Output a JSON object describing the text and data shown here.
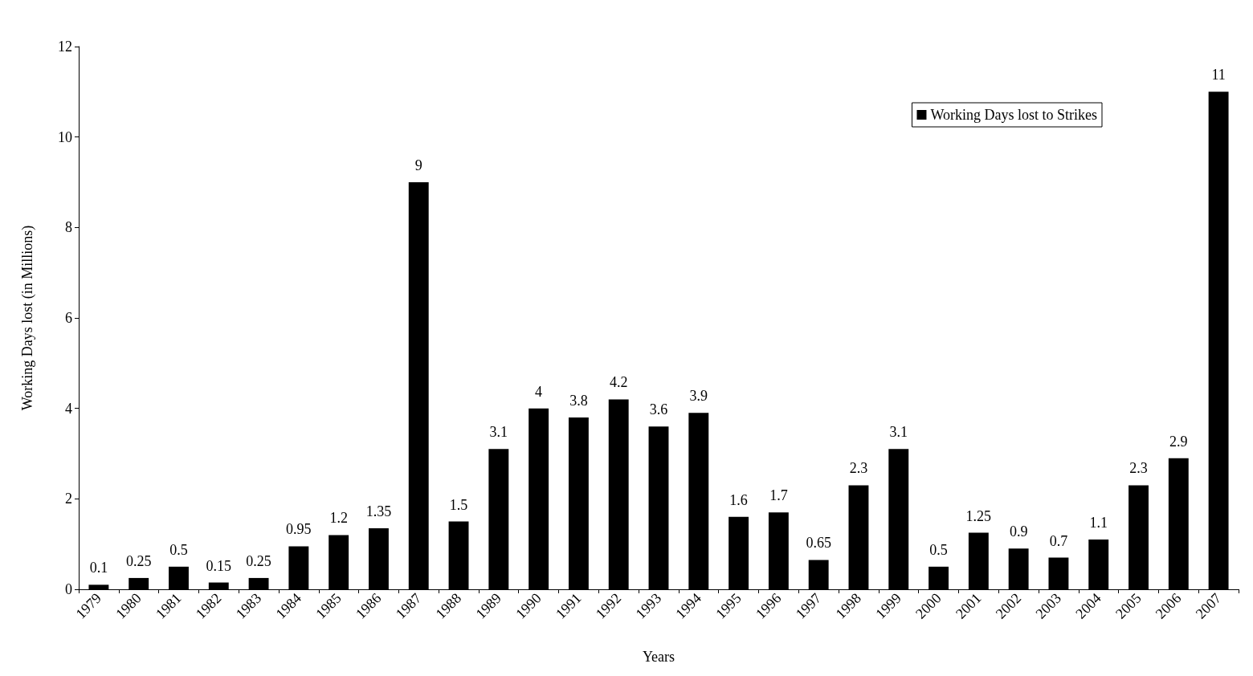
{
  "chart_data": {
    "type": "bar",
    "xlabel": "Years",
    "ylabel": "Working Days lost (in Millions)",
    "categories": [
      "1979",
      "1980",
      "1981",
      "1982",
      "1983",
      "1984",
      "1985",
      "1986",
      "1987",
      "1988",
      "1989",
      "1990",
      "1991",
      "1992",
      "1993",
      "1994",
      "1995",
      "1996",
      "1997",
      "1998",
      "1999",
      "2000",
      "2001",
      "2002",
      "2003",
      "2004",
      "2005",
      "2006",
      "2007"
    ],
    "series": [
      {
        "name": "Working Days lost to Strikes",
        "color": "#000000",
        "values": [
          0.1,
          0.25,
          0.5,
          0.15,
          0.25,
          0.95,
          1.2,
          1.35,
          9,
          1.5,
          3.1,
          4,
          3.8,
          4.2,
          3.6,
          3.9,
          1.6,
          1.7,
          0.65,
          2.3,
          3.1,
          0.5,
          1.25,
          0.9,
          0.7,
          1.1,
          2.3,
          2.9,
          11
        ]
      }
    ],
    "ylim": [
      0,
      12
    ],
    "yticks": [
      0,
      2,
      4,
      6,
      8,
      10,
      12
    ],
    "grid": false,
    "legend": "top right",
    "data_labels": true
  }
}
